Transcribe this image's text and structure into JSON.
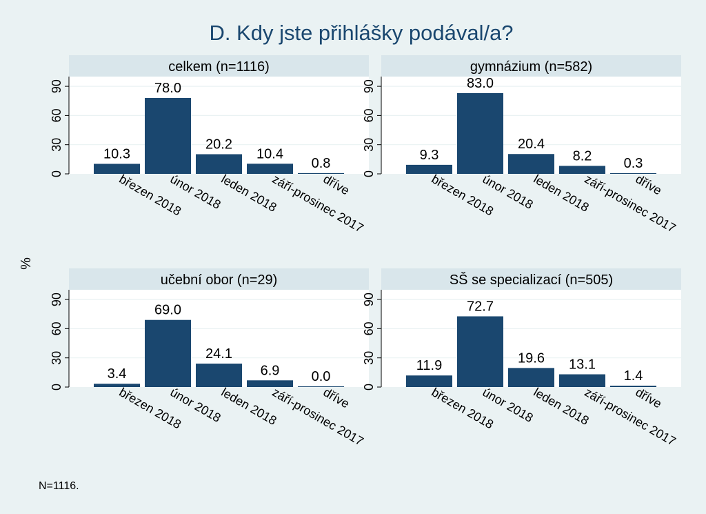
{
  "chart_data": {
    "type": "bar",
    "title": "D. Kdy jste přihlášky podával/a?",
    "ylabel": "%",
    "note": "N=1116.",
    "ylim": [
      0,
      100
    ],
    "yticks": [
      0,
      30,
      60,
      90
    ],
    "categories": [
      "březen 2018",
      "únor 2018",
      "leden 2018",
      "září-prosinec 2017",
      "dříve"
    ],
    "bar_color": "#1a476f",
    "panel_background": "#ffffff",
    "strip_background": "#d9e6eb",
    "figure_background": "#eaf2f3",
    "panels": [
      {
        "title": "celkem (n=1116)",
        "values": [
          10.3,
          78.0,
          20.2,
          10.4,
          0.8
        ],
        "labels": [
          "10.3",
          "78.0",
          "20.2",
          "10.4",
          "0.8"
        ]
      },
      {
        "title": "gymnázium (n=582)",
        "values": [
          9.3,
          83.0,
          20.4,
          8.2,
          0.3
        ],
        "labels": [
          "9.3",
          "83.0",
          "20.4",
          "8.2",
          "0.3"
        ]
      },
      {
        "title": "učební obor (n=29)",
        "values": [
          3.4,
          69.0,
          24.1,
          6.9,
          0.0
        ],
        "labels": [
          "3.4",
          "69.0",
          "24.1",
          "6.9",
          "0.0"
        ]
      },
      {
        "title": "SŠ se specializací (n=505)",
        "values": [
          11.9,
          72.7,
          19.6,
          13.1,
          1.4
        ],
        "labels": [
          "11.9",
          "72.7",
          "19.6",
          "13.1",
          "1.4"
        ]
      }
    ]
  }
}
